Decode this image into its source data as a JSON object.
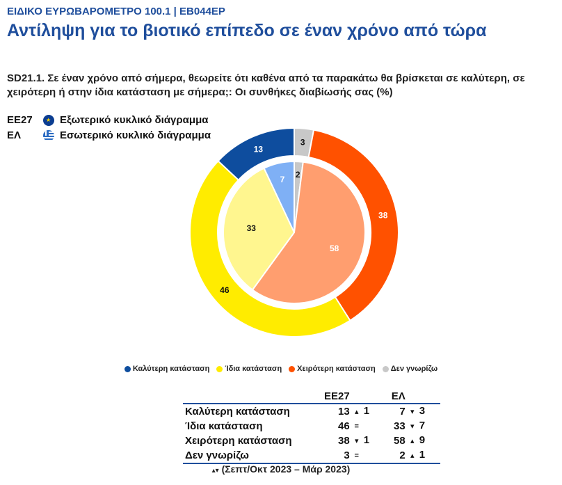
{
  "header": {
    "survey_tag": "ΕΙΔΙΚΟ ΕΥΡΩΒΑΡΟΜΕΤΡΟ 100.1 | EB044EP",
    "title": "Αντίληψη για το βιοτικό επίπεδο σε έναν χρόνο από τώρα"
  },
  "question": "SD21.1. Σε έναν χρόνο από σήμερα, θεωρείτε ότι καθένα από τα παρακάτω θα βρίσκεται σε καλύτερη, σε χειρότερη ή στην ίδια κατάσταση με σήμερα;: Οι συνθήκες διαβίωσής σας (%)",
  "ring_keys": [
    {
      "code": "ΕΕ27",
      "flag_icon": "eu-flag-icon",
      "label": "Εξωτερικό κυκλικό διάγραμμα"
    },
    {
      "code": "ΕΛ",
      "flag_icon": "greek-flag-icon",
      "label": "Εσωτερικό κυκλικό διάγραμμα"
    }
  ],
  "chart_data": {
    "type": "pie",
    "categories": [
      "Καλύτερη κατάσταση",
      "Ίδια κατάσταση",
      "Χειρότερη κατάσταση",
      "Δεν γνωρίζω"
    ],
    "colors_outer": [
      "#0e4d9e",
      "#ffec00",
      "#ff5100",
      "#c8c8c8"
    ],
    "colors_inner": [
      "#7fb0f5",
      "#fff68f",
      "#ff9e6f",
      "#c8c8c8"
    ],
    "series": [
      {
        "name": "ΕΕ27",
        "ring": "outer",
        "values": [
          13,
          46,
          38,
          3
        ]
      },
      {
        "name": "ΕΛ",
        "ring": "inner",
        "values": [
          7,
          33,
          58,
          2
        ]
      }
    ],
    "legend": "bottom"
  },
  "table": {
    "headers": [
      "ΕΕ27",
      "ΕΛ"
    ],
    "rows": [
      {
        "label": "Καλύτερη κατάσταση",
        "eu": "13",
        "eu_chg_sym": "▴",
        "eu_chg": "1",
        "el": "7",
        "el_chg_sym": "▾",
        "el_chg": "3"
      },
      {
        "label": "Ίδια κατάσταση",
        "eu": "46",
        "eu_chg_sym": "=",
        "eu_chg": "",
        "el": "33",
        "el_chg_sym": "▾",
        "el_chg": "7"
      },
      {
        "label": "Χειρότερη κατάσταση",
        "eu": "38",
        "eu_chg_sym": "▾",
        "eu_chg": "1",
        "el": "58",
        "el_chg_sym": "▴",
        "el_chg": "9"
      },
      {
        "label": "Δεν γνωρίζω",
        "eu": "3",
        "eu_chg_sym": "=",
        "eu_chg": "",
        "el": "2",
        "el_chg_sym": "▴",
        "el_chg": "1"
      }
    ]
  },
  "footnote": {
    "arrows": "▴▾",
    "text": "(Σεπτ/Οκτ 2023 – Μάρ 2023)"
  }
}
